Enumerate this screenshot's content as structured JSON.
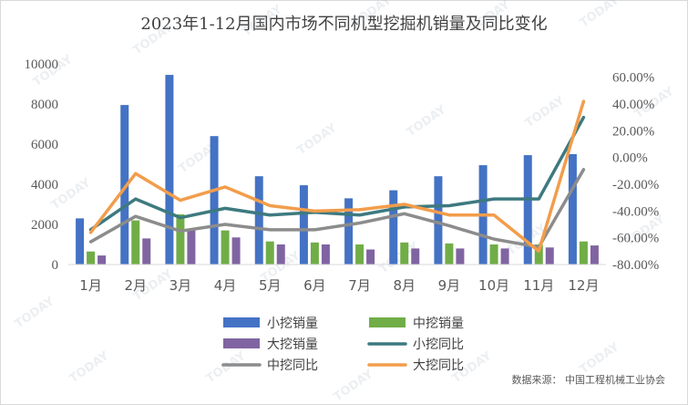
{
  "chart_data": {
    "type": "bar",
    "title": "2023年1-12月国内市场不同机型挖掘机销量及同比变化",
    "categories": [
      "1月",
      "2月",
      "3月",
      "4月",
      "5月",
      "6月",
      "7月",
      "8月",
      "9月",
      "10月",
      "11月",
      "12月"
    ],
    "y_left": {
      "lim": [
        0,
        10000
      ],
      "ticks": [
        0,
        2000,
        4000,
        6000,
        8000,
        10000
      ],
      "tick_labels": [
        "0",
        "2000",
        "4000",
        "6000",
        "8000",
        "10000"
      ]
    },
    "y_right": {
      "lim": [
        -80,
        70
      ],
      "ticks": [
        -80,
        -60,
        -40,
        -20,
        0,
        20,
        40,
        60
      ],
      "tick_labels": [
        "-80.00%",
        "-60.00%",
        "-40.00%",
        "-20.00%",
        "0.00%",
        "20.00%",
        "40.00%",
        "60.00%"
      ]
    },
    "bar_series": [
      {
        "name": "小挖销量",
        "color": "#4472C4",
        "values": [
          2300,
          7950,
          9450,
          6400,
          4400,
          3950,
          3300,
          3700,
          4400,
          4950,
          5450,
          5500
        ]
      },
      {
        "name": "中挖销量",
        "color": "#70AD47",
        "values": [
          650,
          2200,
          2500,
          1700,
          1150,
          1100,
          1000,
          1100,
          1050,
          1000,
          1000,
          1150
        ]
      },
      {
        "name": "大挖销量",
        "color": "#8064A2",
        "values": [
          450,
          1300,
          1700,
          1350,
          1000,
          1000,
          750,
          800,
          800,
          800,
          850,
          950
        ]
      }
    ],
    "line_series": [
      {
        "name": "小挖同比",
        "color": "#3D7A80",
        "values": [
          -54,
          -31,
          -45,
          -38,
          -43,
          -41,
          -43,
          -37,
          -36,
          -31,
          -31,
          30
        ]
      },
      {
        "name": "中挖同比",
        "color": "#8C8C8C",
        "values": [
          -63,
          -44,
          -55,
          -50,
          -54,
          -54,
          -49,
          -42,
          -51,
          -61,
          -67,
          -9
        ]
      },
      {
        "name": "大挖同比",
        "color": "#F29D4B",
        "values": [
          -56,
          -12,
          -32,
          -22,
          -36,
          -40,
          -39,
          -35,
          -43,
          -43,
          -70,
          42
        ]
      }
    ],
    "legend": [
      {
        "name": "小挖销量",
        "kind": "bar",
        "color": "#4472C4"
      },
      {
        "name": "中挖销量",
        "kind": "bar",
        "color": "#70AD47"
      },
      {
        "name": "大挖销量",
        "kind": "bar",
        "color": "#8064A2"
      },
      {
        "name": "小挖同比",
        "kind": "line",
        "color": "#3D7A80"
      },
      {
        "name": "中挖同比",
        "kind": "line",
        "color": "#8C8C8C"
      },
      {
        "name": "大挖同比",
        "kind": "line",
        "color": "#F29D4B"
      }
    ],
    "legend_position": "bottom",
    "grid": false
  },
  "source": "数据来源：  中国工程机械工业协会",
  "watermark": "TODAY"
}
